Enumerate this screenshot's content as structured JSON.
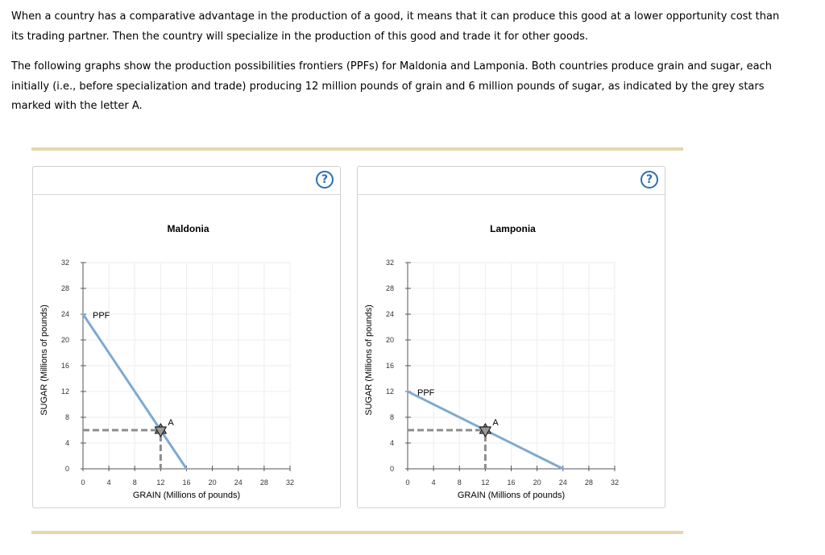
{
  "intro": {
    "paragraph1": "When a country has a comparative advantage in the production of a good, it means that it can produce this good at a lower opportunity cost than its trading partner. Then the country will specialize in the production of this good and trade it for other goods.",
    "paragraph2": "The following graphs show the production possibilities frontiers (PPFs) for Maldonia and Lamponia. Both countries produce grain and sugar, each initially (i.e., before specialization and trade) producing 12 million pounds of grain and 6 million pounds of sugar, as indicated by the grey stars marked with the letter A."
  },
  "help_label": "?",
  "colors": {
    "ppf": "#7fa9d1",
    "point": "#8c8c8c",
    "rule": "#e6d6ad",
    "help": "#2d6fb0"
  },
  "chart_data": [
    {
      "type": "line",
      "title": "Maldonia",
      "xlabel": "GRAIN (Millions of pounds)",
      "ylabel": "SUGAR (Millions of pounds)",
      "xlim": [
        0,
        32
      ],
      "ylim": [
        0,
        32
      ],
      "xticks": [
        0,
        4,
        8,
        12,
        16,
        20,
        24,
        28,
        32
      ],
      "yticks": [
        0,
        4,
        8,
        12,
        16,
        20,
        24,
        28,
        32
      ],
      "series": [
        {
          "name": "PPF",
          "points": [
            [
              0,
              24
            ],
            [
              16,
              0
            ]
          ]
        }
      ],
      "point": {
        "label": "A",
        "x": 12,
        "y": 6
      }
    },
    {
      "type": "line",
      "title": "Lamponia",
      "xlabel": "GRAIN (Millions of pounds)",
      "ylabel": "SUGAR (Millions of pounds)",
      "xlim": [
        0,
        32
      ],
      "ylim": [
        0,
        32
      ],
      "xticks": [
        0,
        4,
        8,
        12,
        16,
        20,
        24,
        28,
        32
      ],
      "yticks": [
        0,
        4,
        8,
        12,
        16,
        20,
        24,
        28,
        32
      ],
      "series": [
        {
          "name": "PPF",
          "points": [
            [
              0,
              12
            ],
            [
              24,
              0
            ]
          ]
        }
      ],
      "point": {
        "label": "A",
        "x": 12,
        "y": 6
      }
    }
  ]
}
